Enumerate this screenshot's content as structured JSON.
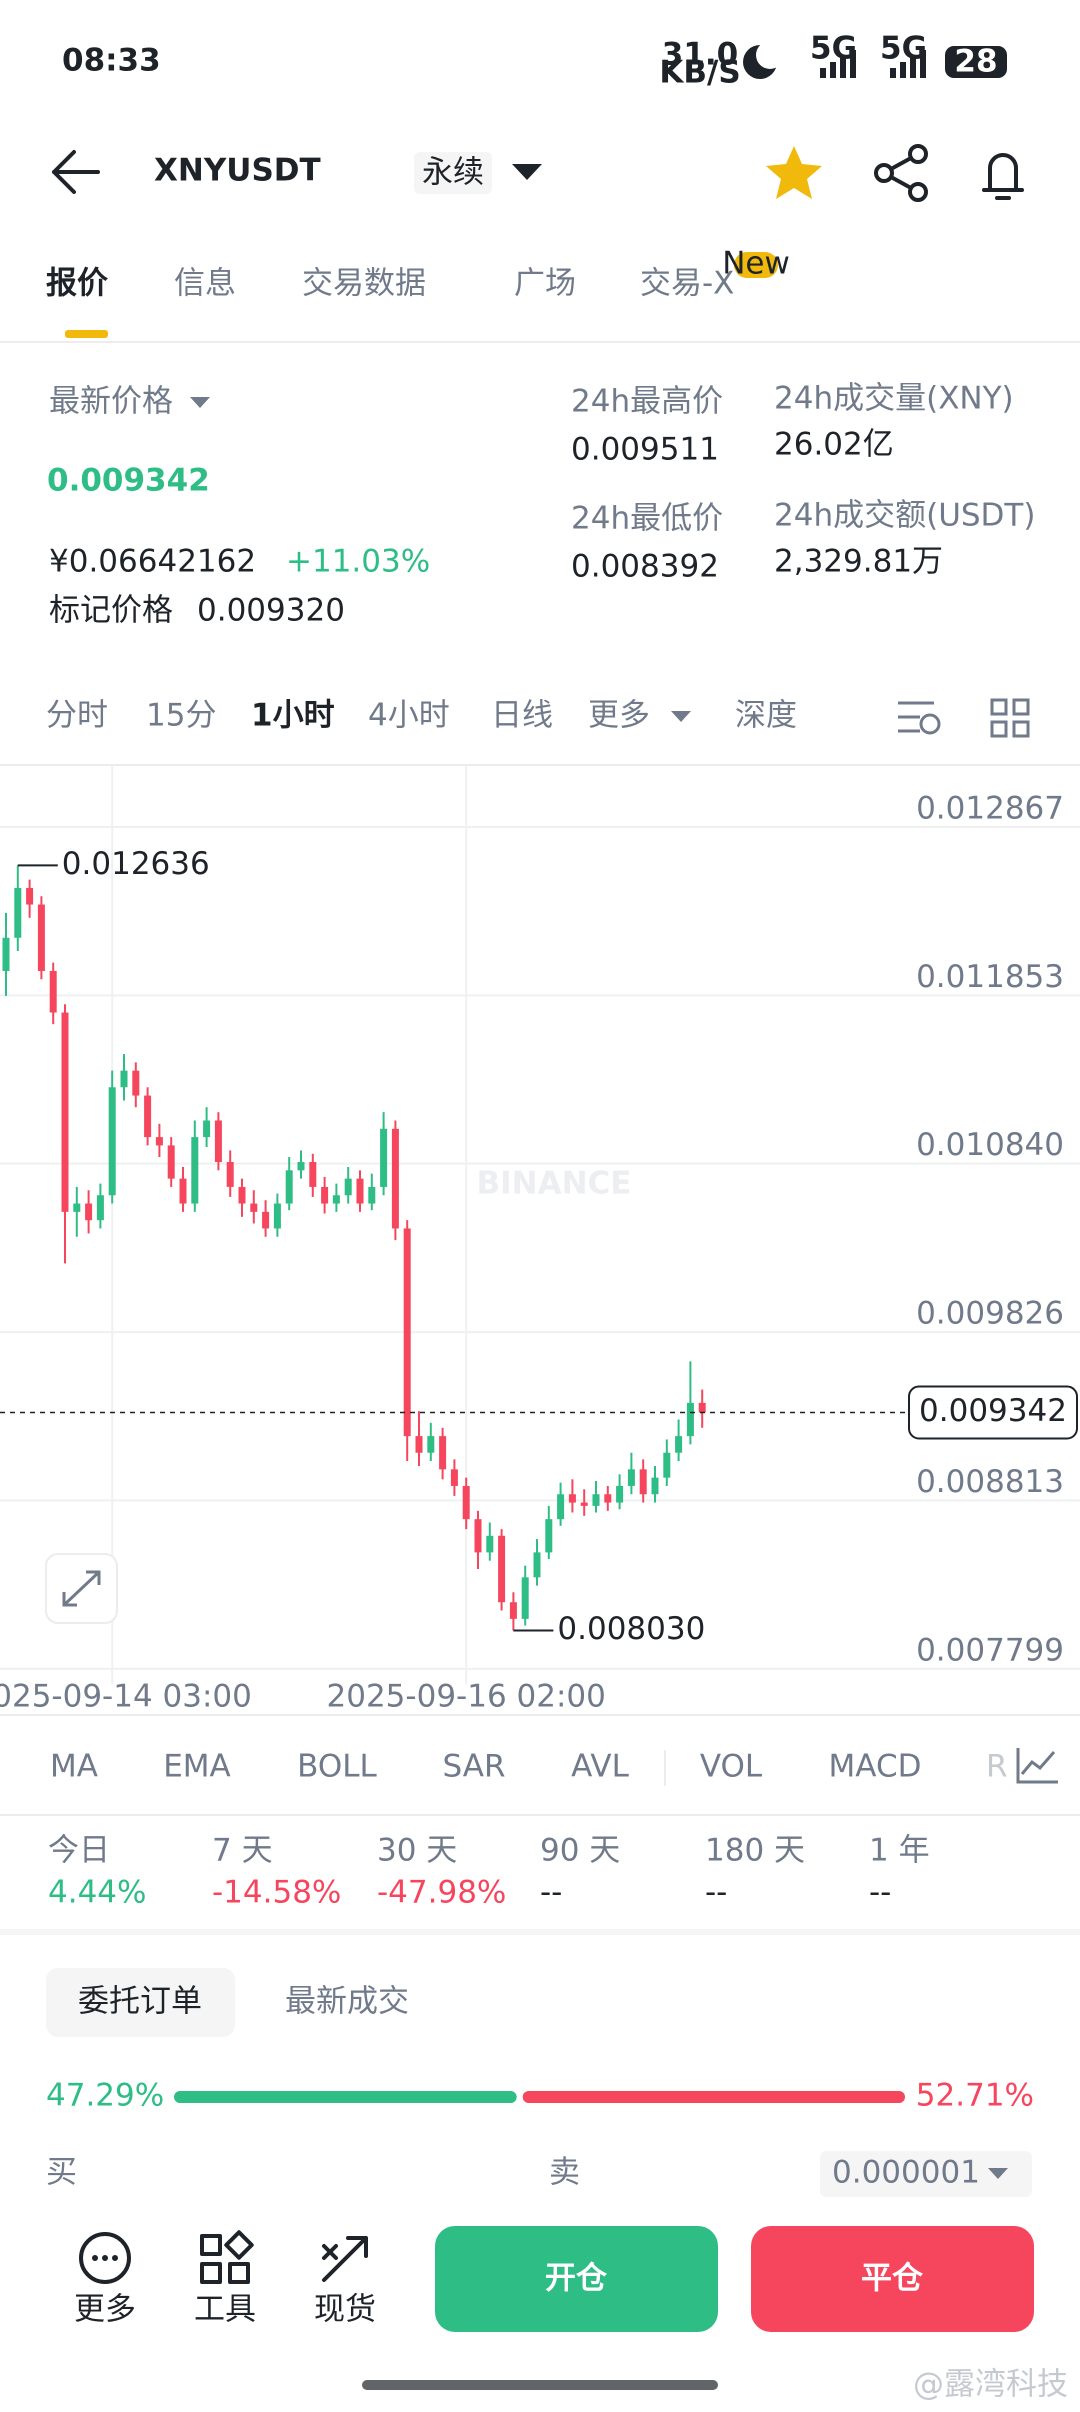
{
  "status_bar": {
    "time": "08:33",
    "net_speed": "31.0",
    "net_unit": "KB/S",
    "signal_1": "5G",
    "signal_2": "5G",
    "battery": "28"
  },
  "header": {
    "symbol": "XNYUSDT",
    "contract": "永续"
  },
  "tabs": [
    "报价",
    "信息",
    "交易数据",
    "广场",
    "交易-X"
  ],
  "new_badge": "New",
  "ticker": {
    "last_price_label": "最新价格",
    "last_price": "0.009342",
    "cny_price": "¥0.06642162",
    "change": "+11.03%",
    "mark_price_label": "标记价格",
    "mark_price": "0.009320",
    "high_label": "24h最高价",
    "high": "0.009511",
    "low_label": "24h最低价",
    "low": "0.008392",
    "volume_label": "24h成交量(XNY)",
    "volume": "26.02亿",
    "turnover_label": "24h成交额(USDT)",
    "turnover": "2,329.81万"
  },
  "intervals": [
    "分时",
    "15分",
    "1小时",
    "4小时",
    "日线",
    "更多",
    "深度"
  ],
  "watermark": "BINANCE",
  "chart_data": {
    "type": "candlestick",
    "categories": [
      null,
      null,
      null,
      null,
      null,
      null,
      null,
      null,
      null,
      "2025-09-14 03:00",
      null,
      null,
      null,
      null,
      null,
      null,
      null,
      null,
      null,
      null,
      null,
      null,
      null,
      null,
      null,
      null,
      null,
      null,
      null,
      null,
      null,
      null,
      null,
      null,
      null,
      null,
      null,
      null,
      null,
      "2025-09-16 02:00",
      null,
      null,
      null,
      null,
      null,
      null,
      null,
      null,
      null,
      null,
      null,
      null,
      null,
      null,
      null,
      null,
      null,
      null,
      null,
      null
    ],
    "open": [
      0.012,
      0.0122,
      0.0125,
      0.0124,
      0.012,
      0.01175,
      0.01055,
      0.0106,
      0.0105,
      0.01065,
      0.0113,
      0.0114,
      0.01125,
      0.011,
      0.01095,
      0.01075,
      0.0106,
      0.011,
      0.0111,
      0.01085,
      0.0107,
      0.0106,
      0.01055,
      0.01045,
      0.0106,
      0.0108,
      0.01085,
      0.0107,
      0.0106,
      0.01065,
      0.01075,
      0.0106,
      0.0107,
      0.01105,
      0.01045,
      0.0092,
      0.0091,
      0.0092,
      0.009,
      0.0089,
      0.0087,
      0.0085,
      0.0086,
      0.0082,
      0.0081,
      0.00835,
      0.0085,
      0.0087,
      0.00885,
      0.0088,
      0.00878,
      0.00885,
      0.0088,
      0.0089,
      0.009,
      0.00885,
      0.00895,
      0.0091,
      0.0092,
      0.0094
    ],
    "high": [
      0.01235,
      0.012636,
      0.01255,
      0.01245,
      0.01205,
      0.0118,
      0.0107,
      0.01068,
      0.01072,
      0.0114,
      0.0115,
      0.01145,
      0.0113,
      0.01108,
      0.011,
      0.01082,
      0.0111,
      0.01118,
      0.01115,
      0.01092,
      0.01075,
      0.01068,
      0.01062,
      0.01066,
      0.01088,
      0.01092,
      0.0109,
      0.01076,
      0.01072,
      0.01082,
      0.0108,
      0.01078,
      0.01115,
      0.0111,
      0.0105,
      0.00935,
      0.00928,
      0.00925,
      0.00906,
      0.00895,
      0.00875,
      0.00868,
      0.00864,
      0.00826,
      0.00842,
      0.00858,
      0.00878,
      0.00892,
      0.00894,
      0.00888,
      0.00893,
      0.0089,
      0.00897,
      0.0091,
      0.00906,
      0.00902,
      0.00918,
      0.0093,
      0.00965,
      0.00948
    ],
    "low": [
      0.01185,
      0.01212,
      0.01232,
      0.01195,
      0.01168,
      0.01024,
      0.0104,
      0.01042,
      0.01045,
      0.0106,
      0.01122,
      0.01118,
      0.01095,
      0.01088,
      0.0107,
      0.01055,
      0.01055,
      0.01094,
      0.0108,
      0.01064,
      0.01052,
      0.01048,
      0.0104,
      0.0104,
      0.01056,
      0.01075,
      0.01064,
      0.01054,
      0.01055,
      0.0106,
      0.01055,
      0.01056,
      0.01065,
      0.01038,
      0.00905,
      0.00902,
      0.00905,
      0.00894,
      0.00884,
      0.00864,
      0.0084,
      0.00845,
      0.00815,
      0.00803,
      0.00806,
      0.0083,
      0.00846,
      0.00866,
      0.00874,
      0.00872,
      0.00874,
      0.00875,
      0.00876,
      0.00885,
      0.0088,
      0.0088,
      0.0089,
      0.00905,
      0.00915,
      0.00925
    ],
    "close": [
      0.0122,
      0.0125,
      0.0124,
      0.012,
      0.01175,
      0.01055,
      0.0106,
      0.0105,
      0.01065,
      0.0113,
      0.0114,
      0.01125,
      0.011,
      0.01095,
      0.01075,
      0.0106,
      0.011,
      0.0111,
      0.01085,
      0.0107,
      0.0106,
      0.01055,
      0.01045,
      0.0106,
      0.0108,
      0.01085,
      0.0107,
      0.0106,
      0.01065,
      0.01075,
      0.0106,
      0.0107,
      0.01105,
      0.01045,
      0.0092,
      0.0091,
      0.0092,
      0.009,
      0.0089,
      0.0087,
      0.0085,
      0.0086,
      0.0082,
      0.0081,
      0.00835,
      0.0085,
      0.0087,
      0.00885,
      0.0088,
      0.00878,
      0.00885,
      0.0088,
      0.0089,
      0.009,
      0.00885,
      0.00895,
      0.0091,
      0.0092,
      0.0094,
      0.009342
    ],
    "up_color": "#2ebd85",
    "down_color": "#f6465d",
    "ylim": [
      0.00778,
      0.01324
    ],
    "yticks": [
      0.012867,
      0.011853,
      {
        "value": 0.01084,
        "label": "0.010840"
      },
      0.009826,
      0.008813,
      0.007799
    ],
    "grid": true,
    "last_price": {
      "value": 0.009342,
      "label": "0.009342"
    },
    "annotations": [
      {
        "value": 0.012636,
        "label": "0.012636",
        "of": "high"
      },
      {
        "value": 0.00803,
        "label": "0.008030",
        "of": "low"
      }
    ]
  },
  "indicators": [
    "MA",
    "EMA",
    "BOLL",
    "SAR",
    "AVL",
    "VOL",
    "MACD",
    "R"
  ],
  "performance": [
    {
      "period": "今日",
      "change": "4.44%"
    },
    {
      "period": "7 天",
      "change": "-14.58%"
    },
    {
      "period": "30 天",
      "change": "-47.98%"
    },
    {
      "period": "90 天",
      "change": "--"
    },
    {
      "period": "180 天",
      "change": "--"
    },
    {
      "period": "1 年",
      "change": "--"
    }
  ],
  "order_book": {
    "tabs": [
      "委托订单",
      "最新成交"
    ],
    "buy_ratio": {
      "value": 47.29,
      "label": "47.29%"
    },
    "sell_ratio": {
      "value": 52.71,
      "label": "52.71%"
    },
    "buy": "买",
    "sell": "卖",
    "precision": "0.000001"
  },
  "bottom_bar": {
    "more": "更多",
    "tools": "工具",
    "spot": "现货",
    "open": "开仓",
    "close": "平仓"
  },
  "footer_watermark": "@露湾科技"
}
